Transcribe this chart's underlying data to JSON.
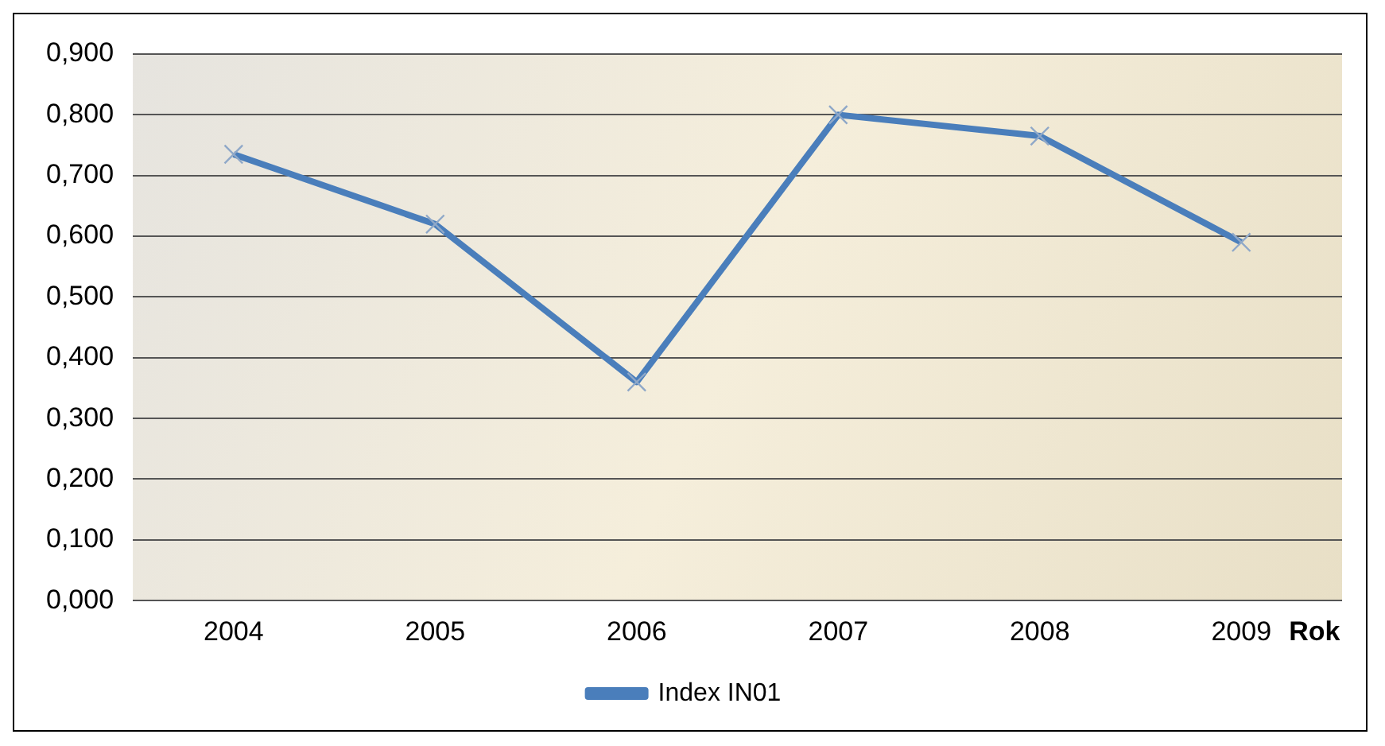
{
  "chart_data": {
    "type": "line",
    "xlabel": "Rok",
    "categories": [
      "2004",
      "2005",
      "2006",
      "2007",
      "2008",
      "2009"
    ],
    "series": [
      {
        "name": "Index IN01",
        "color": "#4a7ebb",
        "values": [
          0.735,
          0.62,
          0.36,
          0.8,
          0.765,
          0.59
        ]
      }
    ],
    "ylim": [
      0,
      0.9
    ],
    "yticks": [
      {
        "value": 0,
        "label": "0,000"
      },
      {
        "value": 0.1,
        "label": "0,100"
      },
      {
        "value": 0.2,
        "label": "0,200"
      },
      {
        "value": 0.3,
        "label": "0,300"
      },
      {
        "value": 0.4,
        "label": "0,400"
      },
      {
        "value": 0.5,
        "label": "0,500"
      },
      {
        "value": 0.6,
        "label": "0,600"
      },
      {
        "value": 0.7,
        "label": "0,700"
      },
      {
        "value": 0.8,
        "label": "0,800"
      },
      {
        "value": 0.9,
        "label": "0,900"
      }
    ],
    "grid": "y",
    "legend": "bottom",
    "marker": "cross",
    "line_style": "solid"
  }
}
